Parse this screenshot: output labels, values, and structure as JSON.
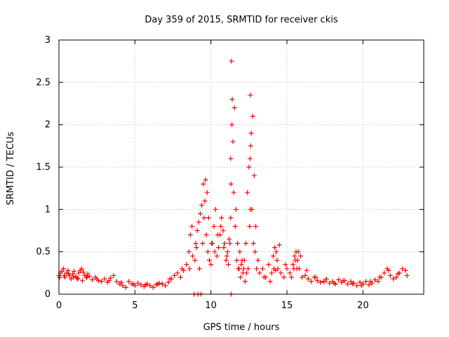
{
  "chart_data": {
    "type": "scatter",
    "title": "Day 359 of 2015, SRMTID for receiver ckis",
    "xlabel": "GPS time / hours",
    "ylabel": "SRMTID / TECUs",
    "xlim": [
      0,
      24
    ],
    "ylim": [
      0,
      3
    ],
    "xticks": [
      0,
      5,
      10,
      15,
      20
    ],
    "xtick_labels": [
      "0",
      "5",
      "10",
      "15",
      "20"
    ],
    "yticks": [
      0,
      0.5,
      1,
      1.5,
      2,
      2.5,
      3
    ],
    "ytick_labels": [
      "0",
      "0.5",
      "1",
      "1.5",
      "2",
      "2.5",
      "3"
    ],
    "grid": true,
    "marker": "plus",
    "series_color": "#ff0000",
    "series": [
      {
        "name": "SRMTID",
        "x": [
          0.0,
          0.1,
          0.2,
          0.3,
          0.4,
          0.5,
          0.6,
          0.7,
          0.8,
          0.9,
          1.0,
          1.1,
          1.2,
          1.3,
          1.4,
          1.5,
          1.6,
          1.7,
          1.8,
          1.9,
          2.0,
          2.2,
          2.4,
          2.6,
          2.8,
          3.0,
          3.2,
          3.4,
          3.6,
          3.8,
          4.0,
          4.2,
          4.4,
          4.6,
          4.8,
          5.0,
          5.2,
          5.4,
          5.6,
          5.8,
          6.0,
          6.2,
          6.4,
          6.6,
          6.8,
          7.0,
          7.2,
          7.4,
          7.6,
          7.8,
          8.0,
          8.2,
          8.4,
          8.6,
          8.8,
          9.0,
          9.1,
          9.2,
          9.3,
          9.4,
          9.5,
          9.6,
          9.7,
          9.8,
          9.9,
          10.0,
          10.1,
          10.2,
          10.3,
          10.4,
          10.5,
          10.6,
          10.7,
          10.8,
          10.9,
          11.0,
          11.1,
          11.2,
          11.3,
          11.35,
          11.4,
          11.5,
          11.6,
          11.7,
          11.8,
          11.9,
          12.0,
          12.1,
          12.2,
          12.3,
          12.4,
          12.5,
          12.6,
          12.7,
          12.8,
          12.9,
          13.0,
          13.2,
          13.4,
          13.6,
          13.8,
          14.0,
          14.1,
          14.2,
          14.3,
          14.4,
          14.6,
          14.8,
          15.0,
          15.2,
          15.4,
          15.5,
          15.6,
          15.7,
          15.8,
          16.0,
          16.2,
          16.4,
          16.6,
          16.8,
          17.0,
          17.2,
          17.4,
          17.6,
          17.8,
          18.0,
          18.2,
          18.4,
          18.6,
          18.8,
          19.0,
          19.2,
          19.4,
          19.6,
          19.8,
          20.0,
          20.2,
          20.4,
          20.6,
          20.8,
          21.0,
          21.2,
          21.4,
          21.6,
          21.8,
          22.0,
          22.2,
          22.4,
          22.6,
          22.8,
          0.05,
          0.35,
          0.65,
          0.95,
          1.25,
          1.55,
          1.85,
          2.5,
          3.3,
          4.1,
          4.9,
          5.7,
          6.5,
          7.3,
          8.1,
          8.55,
          8.65,
          8.75,
          8.95,
          9.05,
          9.25,
          9.45,
          9.55,
          9.65,
          9.75,
          9.85,
          10.05,
          10.25,
          10.45,
          10.65,
          10.85,
          11.05,
          11.15,
          11.25,
          11.3,
          11.32,
          11.38,
          11.45,
          11.55,
          11.65,
          11.75,
          11.85,
          11.95,
          12.05,
          12.15,
          12.25,
          12.35,
          12.45,
          12.55,
          12.6,
          12.65,
          12.75,
          12.85,
          12.95,
          13.1,
          13.5,
          13.9,
          14.15,
          14.25,
          14.35,
          14.5,
          14.9,
          15.3,
          15.45,
          15.55,
          15.65,
          15.75,
          15.9,
          16.3,
          16.9,
          17.5,
          18.1,
          18.7,
          19.3,
          19.9,
          20.5,
          21.1,
          21.7,
          22.3,
          22.9,
          8.9,
          9.15,
          9.35,
          12.62,
          12.58,
          11.33
        ],
        "y": [
          0.22,
          0.25,
          0.27,
          0.3,
          0.2,
          0.25,
          0.28,
          0.22,
          0.18,
          0.24,
          0.27,
          0.21,
          0.19,
          0.25,
          0.28,
          0.3,
          0.26,
          0.22,
          0.2,
          0.24,
          0.21,
          0.17,
          0.2,
          0.16,
          0.15,
          0.18,
          0.14,
          0.19,
          0.22,
          0.15,
          0.12,
          0.1,
          0.08,
          0.15,
          0.12,
          0.1,
          0.13,
          0.11,
          0.09,
          0.12,
          0.1,
          0.08,
          0.11,
          0.13,
          0.12,
          0.1,
          0.14,
          0.18,
          0.22,
          0.25,
          0.2,
          0.28,
          0.35,
          0.3,
          0.45,
          0.6,
          0.75,
          0.85,
          0.95,
          1.05,
          1.3,
          1.1,
          0.7,
          0.5,
          0.4,
          0.35,
          0.6,
          0.8,
          1.0,
          0.45,
          0.55,
          0.7,
          0.9,
          0.75,
          0.6,
          0.4,
          0.5,
          0.65,
          1.6,
          2.75,
          2.3,
          1.2,
          0.8,
          0.4,
          0.3,
          0.5,
          0.35,
          0.25,
          0.4,
          0.6,
          1.2,
          1.5,
          2.35,
          1.0,
          0.6,
          0.5,
          0.3,
          0.25,
          0.3,
          0.2,
          0.35,
          0.25,
          0.45,
          0.55,
          0.5,
          0.3,
          0.25,
          0.2,
          0.3,
          0.25,
          0.35,
          0.45,
          0.5,
          0.4,
          0.3,
          0.2,
          0.22,
          0.18,
          0.15,
          0.2,
          0.16,
          0.14,
          0.15,
          0.18,
          0.13,
          0.15,
          0.12,
          0.17,
          0.14,
          0.16,
          0.12,
          0.15,
          0.13,
          0.1,
          0.14,
          0.12,
          0.15,
          0.11,
          0.13,
          0.17,
          0.15,
          0.2,
          0.25,
          0.3,
          0.22,
          0.18,
          0.2,
          0.25,
          0.3,
          0.28,
          0.2,
          0.22,
          0.24,
          0.2,
          0.18,
          0.16,
          0.2,
          0.18,
          0.16,
          0.14,
          0.12,
          0.11,
          0.12,
          0.18,
          0.3,
          0.5,
          0.7,
          0.8,
          0.4,
          0.55,
          0.3,
          0.6,
          0.9,
          1.35,
          1.2,
          0.9,
          0.6,
          0.5,
          0.7,
          0.8,
          0.55,
          0.45,
          0.35,
          0.6,
          0.9,
          1.3,
          2.0,
          1.8,
          2.2,
          1.0,
          0.6,
          0.3,
          0.2,
          0.4,
          0.3,
          0.15,
          0.25,
          0.3,
          0.8,
          1.0,
          1.9,
          2.1,
          1.4,
          0.8,
          0.4,
          0.2,
          0.15,
          0.3,
          0.28,
          0.4,
          0.58,
          0.35,
          0.2,
          0.3,
          0.4,
          0.3,
          0.5,
          0.45,
          0.28,
          0.2,
          0.15,
          0.13,
          0.16,
          0.12,
          0.1,
          0.15,
          0.2,
          0.28,
          0.24,
          0.22,
          0.0,
          0.0,
          0.0,
          1.75,
          1.6,
          0.0
        ]
      }
    ]
  }
}
